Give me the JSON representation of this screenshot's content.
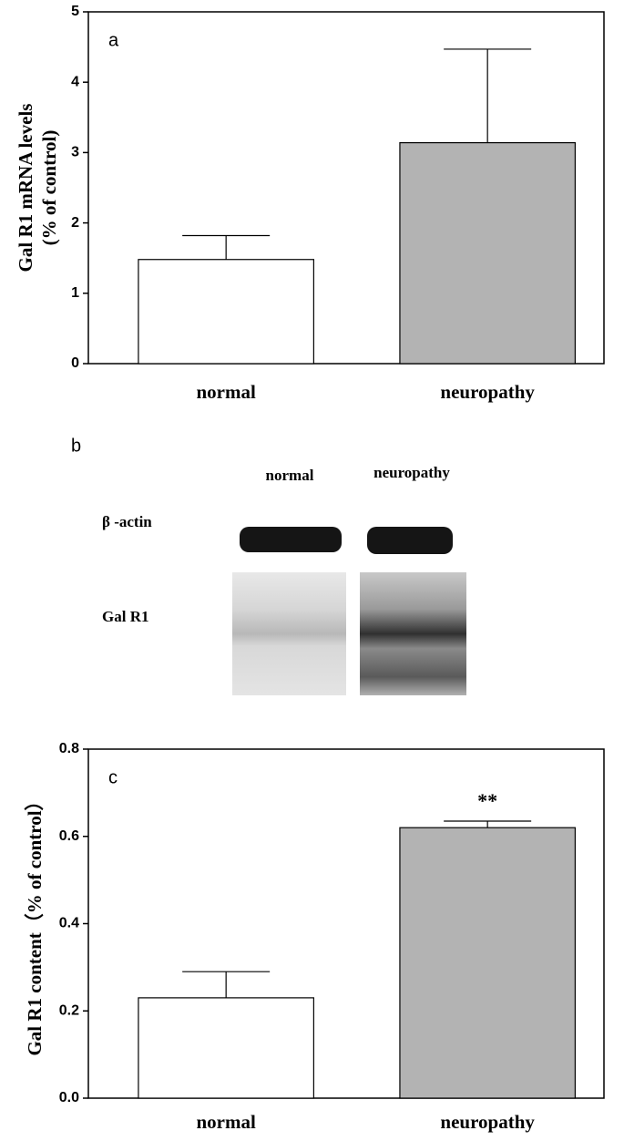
{
  "chart_data": [
    {
      "type": "bar",
      "panel": "a",
      "ylabel": [
        "Gal R1 mRNA levels",
        "(% of control)"
      ],
      "categories": [
        "normal",
        "neuropathy"
      ],
      "values": [
        1.48,
        3.14
      ],
      "errors": [
        0.34,
        1.33
      ],
      "colors": [
        "#ffffff",
        "#b3b3b3"
      ],
      "ylim": [
        0,
        5
      ],
      "yticks": [
        0,
        1,
        2,
        3,
        4,
        5
      ]
    },
    {
      "type": "bar",
      "panel": "c",
      "ylabel": [
        "Gal R1 content（% of control）"
      ],
      "categories": [
        "normal",
        "neuropathy"
      ],
      "values": [
        0.23,
        0.62
      ],
      "errors": [
        0.06,
        0.015
      ],
      "annotations": [
        null,
        "**"
      ],
      "colors": [
        "#ffffff",
        "#b3b3b3"
      ],
      "ylim": [
        0,
        0.8
      ],
      "yticks": [
        {
          "value": 0,
          "label": "0.0"
        },
        0.2,
        0.4,
        0.6,
        0.8
      ]
    }
  ],
  "blot": {
    "panel": "b",
    "lanes": [
      "normal",
      "neuropathy"
    ],
    "rows": [
      "β -actin",
      "Gal R1"
    ]
  }
}
